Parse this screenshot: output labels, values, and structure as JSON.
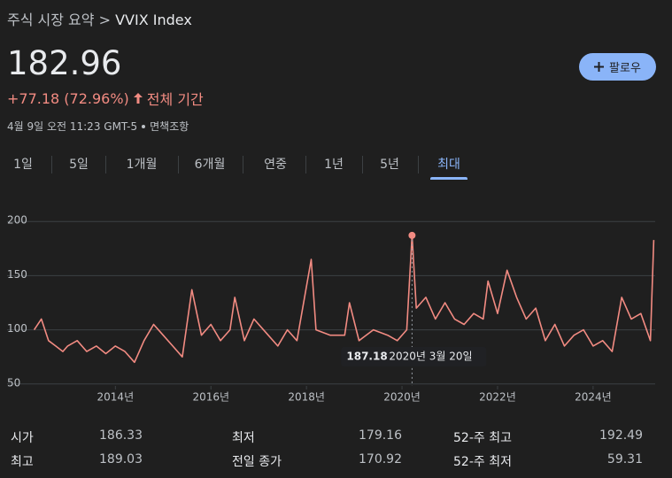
{
  "header": {
    "breadcrumb": "주식 시장 요약",
    "separator": ">",
    "title": "VVIX Index",
    "price": "182.96",
    "change": "+77.18 (72.96%)",
    "period": "전체 기간",
    "timestamp": "4월 9일 오전 11:23 GMT-5",
    "disclaimer": "면책조항",
    "follow_button": "팔로우"
  },
  "tabs": {
    "items": [
      "1일",
      "5일",
      "1개월",
      "6개월",
      "연중",
      "1년",
      "5년",
      "최대"
    ],
    "selected": 7
  },
  "chart_data": {
    "type": "line",
    "x": [
      2012.3,
      2012.45,
      2012.6,
      2012.75,
      2012.9,
      2013.0,
      2013.2,
      2013.4,
      2013.6,
      2013.8,
      2014.0,
      2014.2,
      2014.4,
      2014.6,
      2014.8,
      2015.0,
      2015.2,
      2015.4,
      2015.6,
      2015.8,
      2016.0,
      2016.2,
      2016.4,
      2016.5,
      2016.7,
      2016.9,
      2017.2,
      2017.4,
      2017.6,
      2017.8,
      2018.1,
      2018.2,
      2018.5,
      2018.8,
      2018.9,
      2019.1,
      2019.4,
      2019.7,
      2019.9,
      2020.1,
      2020.21,
      2020.3,
      2020.5,
      2020.7,
      2020.9,
      2021.1,
      2021.3,
      2021.5,
      2021.7,
      2021.8,
      2022.0,
      2022.2,
      2022.4,
      2022.6,
      2022.8,
      2023.0,
      2023.2,
      2023.4,
      2023.6,
      2023.8,
      2024.0,
      2024.2,
      2024.4,
      2024.6,
      2024.8,
      2025.0,
      2025.2,
      2025.27
    ],
    "series": [
      {
        "color": "#f28b82",
        "values": [
          100,
          110,
          90,
          85,
          80,
          85,
          90,
          80,
          85,
          78,
          85,
          80,
          70,
          90,
          105,
          95,
          85,
          75,
          137,
          95,
          105,
          90,
          100,
          130,
          90,
          110,
          95,
          85,
          100,
          90,
          165,
          100,
          95,
          95,
          125,
          90,
          100,
          95,
          90,
          100,
          187.18,
          120,
          130,
          110,
          125,
          110,
          105,
          115,
          110,
          145,
          115,
          155,
          130,
          110,
          120,
          90,
          105,
          85,
          95,
          100,
          85,
          90,
          80,
          130,
          110,
          115,
          90,
          182.96
        ]
      }
    ],
    "tooltip_date": "2020년 3월 20일",
    "xlim": [
      2012.27,
      2025.3
    ],
    "ylim": [
      40,
      210
    ],
    "xticks": [
      {
        "value": 2014,
        "label": "2014년"
      },
      {
        "value": 2016,
        "label": "2016년"
      },
      {
        "value": 2018,
        "label": "2018년"
      },
      {
        "value": 2020,
        "label": "2020년"
      },
      {
        "value": 2022,
        "label": "2022년"
      },
      {
        "value": 2024,
        "label": "2024년"
      }
    ],
    "yticks": [
      50,
      100,
      150,
      200
    ],
    "grid": true
  },
  "stats": {
    "rows": [
      [
        [
          "시가",
          "186.33"
        ],
        [
          "최저",
          "179.16"
        ],
        [
          "52-주 최고",
          "192.49"
        ]
      ],
      [
        [
          "최고",
          "189.03"
        ],
        [
          "전일 종가",
          "170.92"
        ],
        [
          "52-주 최저",
          "59.31"
        ]
      ]
    ]
  }
}
